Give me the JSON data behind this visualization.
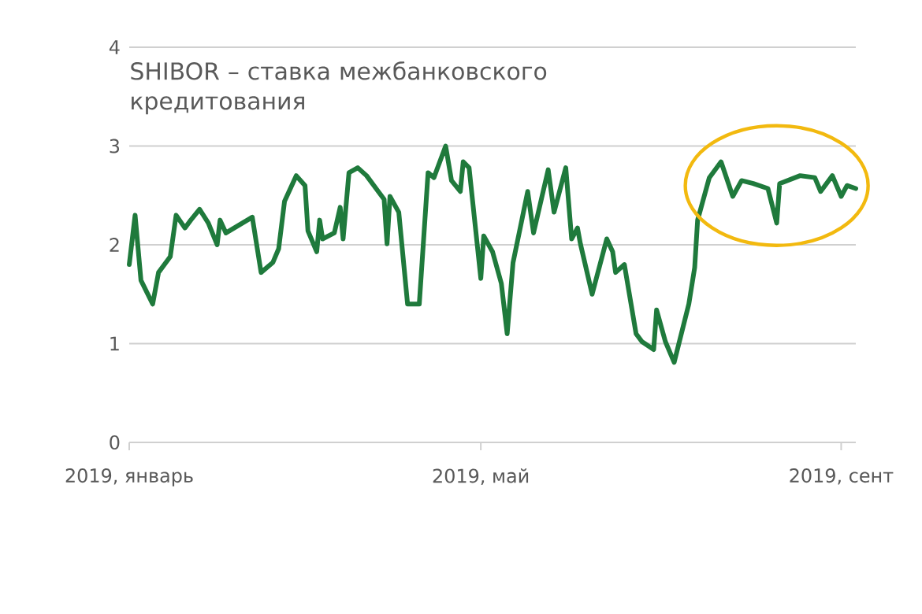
{
  "chart_data": {
    "type": "line",
    "title": "SHIBOR – ставка межбанковского кредитования",
    "x": [
      "2019-01-01",
      "2019-01-03",
      "2019-01-05",
      "2019-01-09",
      "2019-01-11",
      "2019-01-13",
      "2019-01-15",
      "2019-01-17",
      "2019-01-20",
      "2019-01-22",
      "2019-01-25",
      "2019-01-28",
      "2019-01-31",
      "2019-02-01",
      "2019-02-03",
      "2019-02-12",
      "2019-02-15",
      "2019-02-19",
      "2019-02-21",
      "2019-02-23",
      "2019-02-27",
      "2019-03-02",
      "2019-03-03",
      "2019-03-06",
      "2019-03-07",
      "2019-03-08",
      "2019-03-12",
      "2019-03-14",
      "2019-03-15",
      "2019-03-17",
      "2019-03-20",
      "2019-03-23",
      "2019-03-27",
      "2019-03-29",
      "2019-03-30",
      "2019-03-31",
      "2019-04-03",
      "2019-04-06",
      "2019-04-10",
      "2019-04-13",
      "2019-04-15",
      "2019-04-19",
      "2019-04-21",
      "2019-04-24",
      "2019-04-25",
      "2019-04-27",
      "2019-05-01",
      "2019-05-02",
      "2019-05-05",
      "2019-05-08",
      "2019-05-10",
      "2019-05-12",
      "2019-05-15",
      "2019-05-17",
      "2019-05-19",
      "2019-05-24",
      "2019-05-26",
      "2019-05-30",
      "2019-06-01",
      "2019-06-03",
      "2019-06-04",
      "2019-06-08",
      "2019-06-13",
      "2019-06-15",
      "2019-06-16",
      "2019-06-19",
      "2019-06-23",
      "2019-06-25",
      "2019-06-29",
      "2019-06-30",
      "2019-07-03",
      "2019-07-06",
      "2019-07-11",
      "2019-07-13",
      "2019-07-14",
      "2019-07-18",
      "2019-07-22",
      "2019-07-26",
      "2019-07-29",
      "2019-08-02",
      "2019-08-07",
      "2019-08-10",
      "2019-08-11",
      "2019-08-18",
      "2019-08-23",
      "2019-08-25",
      "2019-08-29",
      "2019-09-01",
      "2019-09-03",
      "2019-09-06"
    ],
    "series": [
      {
        "color": "#1f7a3c",
        "values": [
          1.8,
          2.3,
          1.64,
          1.4,
          1.72,
          1.8,
          1.88,
          2.3,
          2.17,
          2.25,
          2.36,
          2.22,
          2.0,
          2.25,
          2.12,
          2.28,
          1.72,
          1.82,
          1.96,
          2.44,
          2.7,
          2.6,
          2.14,
          1.93,
          2.25,
          2.06,
          2.12,
          2.38,
          2.06,
          2.73,
          2.78,
          2.7,
          2.54,
          2.46,
          2.01,
          2.49,
          2.33,
          1.4,
          1.4,
          2.73,
          2.68,
          3.0,
          2.65,
          2.54,
          2.84,
          2.78,
          1.66,
          2.09,
          1.93,
          1.61,
          1.1,
          1.82,
          2.25,
          2.54,
          2.12,
          2.76,
          2.33,
          2.78,
          2.06,
          2.17,
          2.01,
          1.5,
          2.06,
          1.93,
          1.72,
          1.8,
          1.1,
          1.02,
          0.94,
          1.34,
          1.02,
          0.81,
          1.4,
          1.77,
          2.25,
          2.68,
          2.84,
          2.49,
          2.65,
          2.62,
          2.57,
          2.22,
          2.62,
          2.7,
          2.68,
          2.54,
          2.7,
          2.49,
          2.6,
          2.57
        ]
      }
    ],
    "xlim": [
      "2019-01-01",
      "2019-09-06"
    ],
    "xticks": [
      {
        "value": "2019-01-01",
        "label": "2019, январь"
      },
      {
        "value": "2019-05-01",
        "label": "2019, май"
      },
      {
        "value": "2019-09-01",
        "label": "2019, сент"
      }
    ],
    "ylim": [
      0,
      4
    ],
    "yticks": [
      0,
      1,
      2,
      3,
      4
    ],
    "grid": "y",
    "marker": "none",
    "line_style": "solid"
  }
}
